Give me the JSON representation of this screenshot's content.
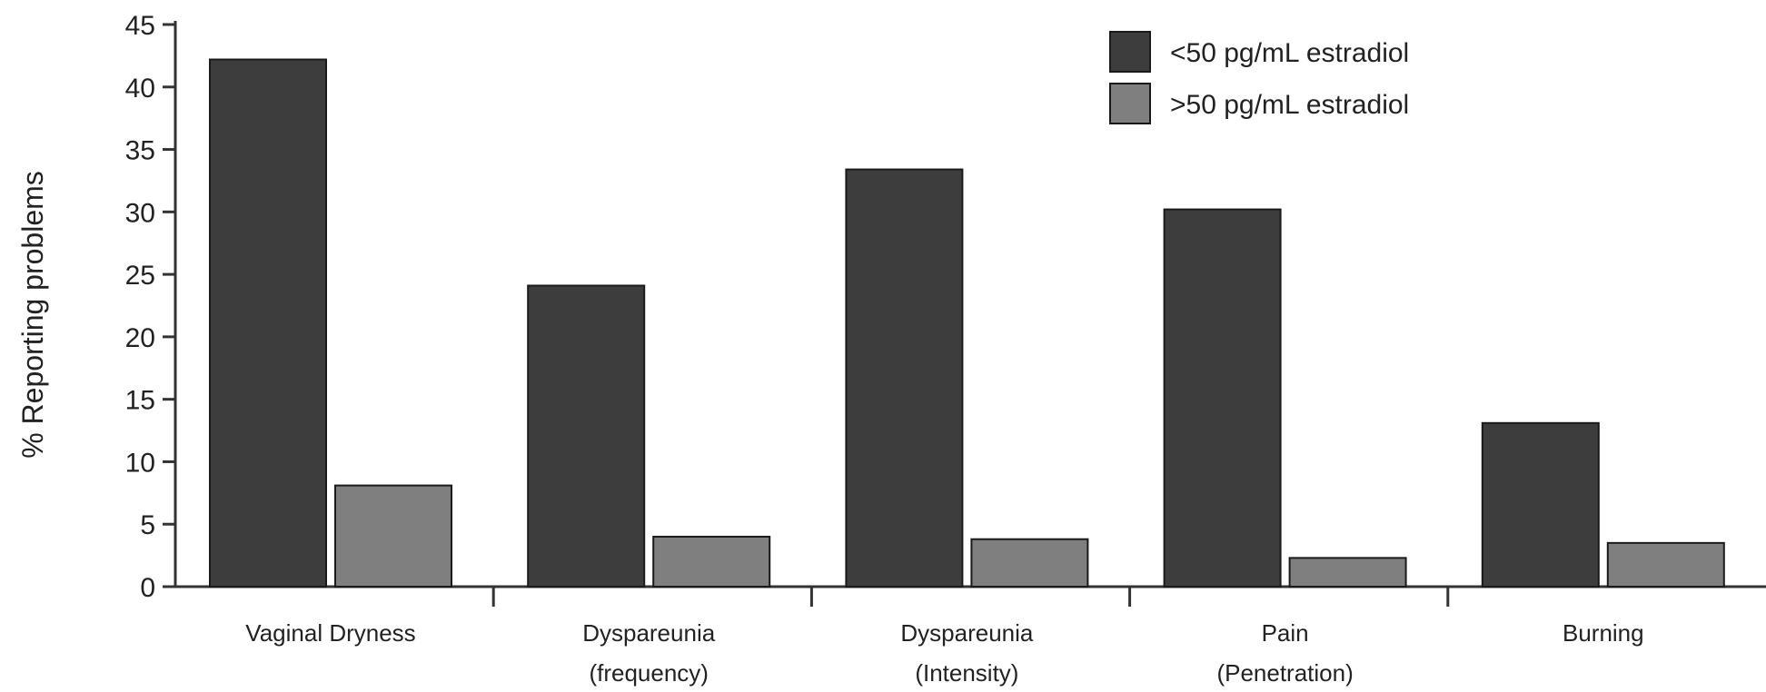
{
  "chart_data": {
    "type": "bar",
    "title": "",
    "xlabel": "",
    "ylabel": "% Reporting problems",
    "ylim": [
      0,
      45
    ],
    "yticks": [
      0,
      5,
      10,
      15,
      20,
      25,
      30,
      35,
      40,
      45
    ],
    "grid": false,
    "legend_position": "top-right",
    "categories": [
      [
        "Vaginal Dryness"
      ],
      [
        "Dyspareunia",
        "(frequency)"
      ],
      [
        "Dyspareunia",
        "(Intensity)"
      ],
      [
        "Pain",
        "(Penetration)"
      ],
      [
        "Burning"
      ]
    ],
    "series": [
      {
        "name": "<50 pg/mL estradiol",
        "color": "#3d3d3d",
        "values": [
          42.2,
          24.1,
          33.4,
          30.2,
          13.1
        ]
      },
      {
        "name": ">50 pg/mL estradiol",
        "color": "#7f7f7f",
        "values": [
          8.1,
          4.0,
          3.8,
          2.3,
          3.5
        ]
      }
    ]
  }
}
